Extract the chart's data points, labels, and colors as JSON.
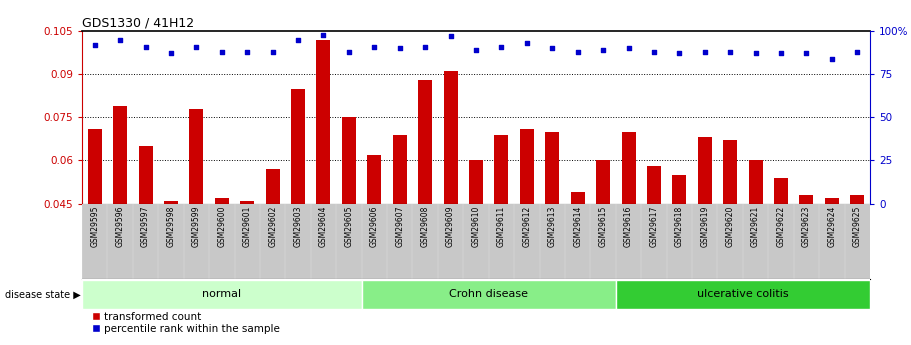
{
  "title": "GDS1330 / 41H12",
  "samples": [
    "GSM29595",
    "GSM29596",
    "GSM29597",
    "GSM29598",
    "GSM29599",
    "GSM29600",
    "GSM29601",
    "GSM29602",
    "GSM29603",
    "GSM29604",
    "GSM29605",
    "GSM29606",
    "GSM29607",
    "GSM29608",
    "GSM29609",
    "GSM29610",
    "GSM29611",
    "GSM29612",
    "GSM29613",
    "GSM29614",
    "GSM29615",
    "GSM29616",
    "GSM29617",
    "GSM29618",
    "GSM29619",
    "GSM29620",
    "GSM29621",
    "GSM29622",
    "GSM29623",
    "GSM29624",
    "GSM29625"
  ],
  "bar_values": [
    0.071,
    0.079,
    0.065,
    0.046,
    0.078,
    0.047,
    0.046,
    0.057,
    0.085,
    0.102,
    0.075,
    0.062,
    0.069,
    0.088,
    0.091,
    0.06,
    0.069,
    0.071,
    0.07,
    0.049,
    0.06,
    0.07,
    0.058,
    0.055,
    0.068,
    0.067,
    0.06,
    0.054,
    0.048,
    0.047,
    0.048
  ],
  "percentile_values": [
    92,
    95,
    91,
    87,
    91,
    88,
    88,
    88,
    95,
    98,
    88,
    91,
    90,
    91,
    97,
    89,
    91,
    93,
    90,
    88,
    89,
    90,
    88,
    87,
    88,
    88,
    87,
    87,
    87,
    84,
    88
  ],
  "bar_color": "#cc0000",
  "dot_color": "#0000cc",
  "ylim_left": [
    0.045,
    0.105
  ],
  "ylim_right": [
    0,
    100
  ],
  "yticks_left": [
    0.045,
    0.06,
    0.075,
    0.09,
    0.105
  ],
  "yticks_right": [
    0,
    25,
    50,
    75,
    100
  ],
  "grid_lines": [
    0.06,
    0.075,
    0.09
  ],
  "groups": [
    {
      "label": "normal",
      "start": 0,
      "end": 11,
      "color": "#ccffcc"
    },
    {
      "label": "Crohn disease",
      "start": 11,
      "end": 21,
      "color": "#88ee88"
    },
    {
      "label": "ulcerative colitis",
      "start": 21,
      "end": 31,
      "color": "#33cc33"
    }
  ],
  "legend_bar_label": "transformed count",
  "legend_dot_label": "percentile rank within the sample",
  "disease_state_label": "disease state"
}
